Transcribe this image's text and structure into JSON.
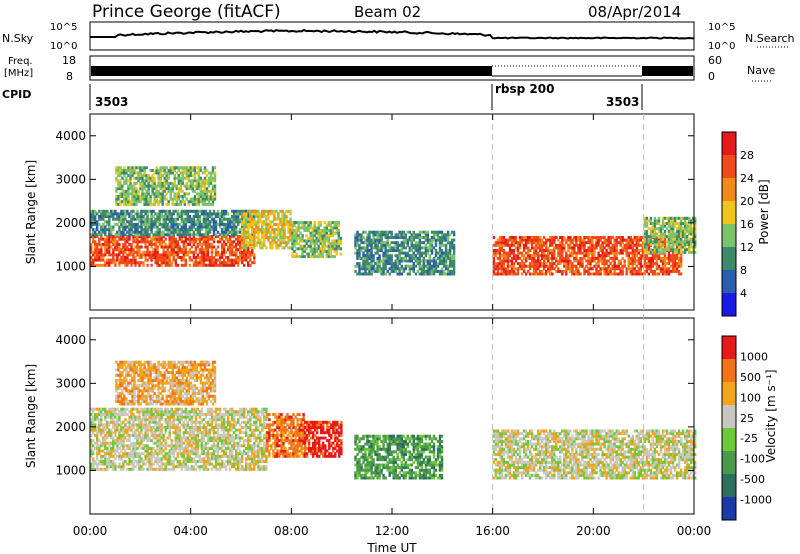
{
  "header": {
    "station": "Prince George (fitACF)",
    "beam": "Beam 02",
    "date": "08/Apr/2014"
  },
  "top_panels": {
    "nsky_label": "N.Sky",
    "nsearch_label": "N.Search",
    "nsky_ticks": [
      "10^5",
      "10^0"
    ],
    "freq_label_1": "Freq.",
    "freq_label_2": "[MHz]",
    "freq_ticks": [
      "18",
      "8"
    ],
    "nave_label": "Nave",
    "nave_ticks": [
      "60",
      "0"
    ],
    "cpid_label": "CPID",
    "cpid_segments": [
      "3503",
      "rbsp 200",
      "3503"
    ]
  },
  "power_panel": {
    "ylabel": "Slant Range [km]",
    "cbar_label": "Power [dB]",
    "cbar_ticks": [
      "28",
      "24",
      "20",
      "16",
      "12",
      "8",
      "4"
    ]
  },
  "velocity_panel": {
    "ylabel": "Slant Range [km]",
    "cbar_label": "Velocity [m s⁻¹]",
    "cbar_ticks": [
      "1000",
      "500",
      "100",
      "25",
      "-25",
      "-100",
      "-500",
      "-1000"
    ]
  },
  "xaxis": {
    "ticks": [
      "00:00",
      "04:00",
      "08:00",
      "12:00",
      "16:00",
      "20:00",
      "00:00"
    ],
    "label": "Time UT"
  },
  "colors": {
    "power_scale": [
      "#1a1ae6",
      "#2a5cb0",
      "#3d8a6a",
      "#7cc46b",
      "#f2c41a",
      "#f28a1a",
      "#f24a1a",
      "#e61a1a"
    ],
    "velocity_scale": [
      "#1a3aa8",
      "#2f6f5f",
      "#4a9a4a",
      "#6cc93a",
      "#c8c8c0",
      "#f2a41a",
      "#f2741a",
      "#e61a1a"
    ]
  },
  "chart_data": {
    "type": "heatmap",
    "x_unit": "hours UT",
    "xlim": [
      0,
      24
    ],
    "ylim": [
      0,
      4500
    ],
    "range_yticks": [
      1000,
      2000,
      3000,
      4000
    ],
    "mode_changes_hours": [
      16,
      22
    ],
    "power_blobs": [
      {
        "t0": 0.0,
        "t1": 6.5,
        "r0": 1000,
        "r1": 1700,
        "level": 6
      },
      {
        "t0": 0.0,
        "t1": 6.5,
        "r0": 1700,
        "r1": 2300,
        "level": 2
      },
      {
        "t0": 1.0,
        "t1": 5.0,
        "r0": 2400,
        "r1": 3300,
        "level": 3
      },
      {
        "t0": 6.0,
        "t1": 8.0,
        "r0": 1400,
        "r1": 2300,
        "level": 4
      },
      {
        "t0": 8.0,
        "t1": 10.0,
        "r0": 1200,
        "r1": 2000,
        "level": 3
      },
      {
        "t0": 10.5,
        "t1": 14.5,
        "r0": 800,
        "r1": 1800,
        "level": 2
      },
      {
        "t0": 16.0,
        "t1": 23.5,
        "r0": 800,
        "r1": 1700,
        "level": 6
      },
      {
        "t0": 22.0,
        "t1": 24.0,
        "r0": 1300,
        "r1": 2100,
        "level": 3
      }
    ],
    "velocity_blobs": [
      {
        "t0": 0.0,
        "t1": 7.0,
        "r0": 1000,
        "r1": 2400,
        "level": 4
      },
      {
        "t0": 7.0,
        "t1": 8.5,
        "r0": 1300,
        "r1": 2300,
        "level": 6
      },
      {
        "t0": 8.5,
        "t1": 10.0,
        "r0": 1300,
        "r1": 2100,
        "level": 7
      },
      {
        "t0": 10.5,
        "t1": 14.0,
        "r0": 800,
        "r1": 1800,
        "level": 2
      },
      {
        "t0": 16.0,
        "t1": 24.0,
        "r0": 800,
        "r1": 1900,
        "level": 4
      },
      {
        "t0": 1.0,
        "t1": 5.0,
        "r0": 2500,
        "r1": 3500,
        "level": 5
      }
    ]
  }
}
